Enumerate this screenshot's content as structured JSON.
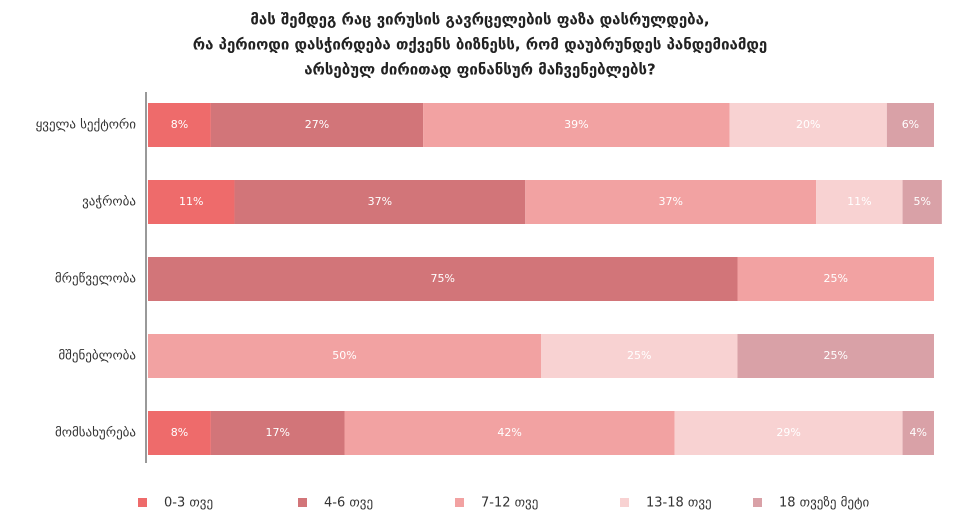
{
  "chart_data": {
    "type": "stacked_barh",
    "title": [
      "მას შემდეგ რაც ვირუსის გავრცელების ფაზა დასრულდება,",
      "რა პერიოდი დასჭირდება თქვენს ბიზნესს, რომ დაუბრუნდეს პანდემიამდე",
      "არსებულ ძირითად ფინანსურ მაჩვენებლებს?"
    ],
    "categories": [
      "ყველა სექტორი",
      "ვაჭრობა",
      "მრეწველობა",
      "მშენებლობა",
      "მომსახურება"
    ],
    "xlim": [
      0,
      100
    ],
    "series": [
      {
        "name": "0-3 თვე",
        "color": "#ee6b6b",
        "values": [
          8,
          11,
          0,
          0,
          8
        ],
        "value_labels": [
          "8%",
          "11%",
          null,
          null,
          "8%"
        ]
      },
      {
        "name": "4-6 თვე",
        "color": "#d27579",
        "values": [
          27,
          37,
          75,
          0,
          17
        ],
        "value_labels": [
          "27%",
          "37%",
          "75%",
          null,
          "17%"
        ]
      },
      {
        "name": "7-12 თვე",
        "color": "#f2a2a2",
        "values": [
          39,
          37,
          25,
          50,
          42
        ],
        "value_labels": [
          "39%",
          "37%",
          "25%",
          "50%",
          "42%"
        ]
      },
      {
        "name": "13-18 თვე",
        "color": "#f8d2d2",
        "values": [
          20,
          11,
          0,
          25,
          29
        ],
        "value_labels": [
          "20%",
          "11%",
          null,
          "25%",
          "29%"
        ]
      },
      {
        "name": "18 თვეზე მეტი",
        "color": "#d9a1a7",
        "values": [
          6,
          5,
          0,
          25,
          4
        ],
        "value_labels": [
          "6%",
          "5%",
          null,
          "25%",
          "4%"
        ]
      }
    ]
  }
}
